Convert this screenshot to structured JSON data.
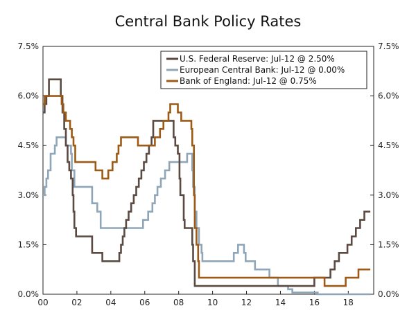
{
  "chart_data": {
    "type": "line",
    "title": "Central Bank Policy Rates",
    "xlabel": "",
    "ylabel": "",
    "xlim": [
      2000.0,
      2019.5
    ],
    "ylim": [
      0,
      7.5
    ],
    "x_ticks": [
      {
        "value": 2000,
        "label": "00"
      },
      {
        "value": 2002,
        "label": "02"
      },
      {
        "value": 2004,
        "label": "04"
      },
      {
        "value": 2006,
        "label": "06"
      },
      {
        "value": 2008,
        "label": "08"
      },
      {
        "value": 2010,
        "label": "10"
      },
      {
        "value": 2012,
        "label": "12"
      },
      {
        "value": 2014,
        "label": "14"
      },
      {
        "value": 2016,
        "label": "16"
      },
      {
        "value": 2018,
        "label": "18"
      }
    ],
    "y_ticks": [
      {
        "value": 0,
        "label": "0.0%"
      },
      {
        "value": 1.5,
        "label": "1.5%"
      },
      {
        "value": 3.0,
        "label": "3.0%"
      },
      {
        "value": 4.5,
        "label": "4.5%"
      },
      {
        "value": 6.0,
        "label": "6.0%"
      },
      {
        "value": 7.5,
        "label": "7.5%"
      }
    ],
    "grid": false,
    "legend_position": "top-right",
    "series": [
      {
        "name": "U.S. Federal Reserve: Jul-12 @ 2.50%",
        "color": "#5a4a42",
        "points": [
          [
            2000.0,
            5.5
          ],
          [
            2000.1,
            5.75
          ],
          [
            2000.2,
            6.0
          ],
          [
            2000.35,
            6.5
          ],
          [
            2000.95,
            6.5
          ],
          [
            2001.05,
            6.0
          ],
          [
            2001.15,
            5.5
          ],
          [
            2001.25,
            5.0
          ],
          [
            2001.35,
            4.5
          ],
          [
            2001.45,
            4.0
          ],
          [
            2001.55,
            3.75
          ],
          [
            2001.65,
            3.5
          ],
          [
            2001.75,
            3.0
          ],
          [
            2001.8,
            2.5
          ],
          [
            2001.85,
            2.0
          ],
          [
            2001.95,
            1.75
          ],
          [
            2002.9,
            1.25
          ],
          [
            2003.5,
            1.0
          ],
          [
            2004.5,
            1.25
          ],
          [
            2004.6,
            1.5
          ],
          [
            2004.7,
            1.75
          ],
          [
            2004.8,
            2.0
          ],
          [
            2004.9,
            2.25
          ],
          [
            2005.05,
            2.5
          ],
          [
            2005.2,
            2.75
          ],
          [
            2005.35,
            3.0
          ],
          [
            2005.5,
            3.25
          ],
          [
            2005.65,
            3.5
          ],
          [
            2005.8,
            3.75
          ],
          [
            2005.95,
            4.0
          ],
          [
            2006.1,
            4.25
          ],
          [
            2006.25,
            4.5
          ],
          [
            2006.4,
            4.75
          ],
          [
            2006.5,
            5.25
          ],
          [
            2007.65,
            5.25
          ],
          [
            2007.7,
            4.75
          ],
          [
            2007.8,
            4.5
          ],
          [
            2007.95,
            4.25
          ],
          [
            2008.05,
            3.5
          ],
          [
            2008.1,
            3.0
          ],
          [
            2008.3,
            2.25
          ],
          [
            2008.35,
            2.0
          ],
          [
            2008.8,
            1.5
          ],
          [
            2008.85,
            1.0
          ],
          [
            2008.95,
            0.25
          ],
          [
            2015.95,
            0.25
          ],
          [
            2016.0,
            0.5
          ],
          [
            2016.95,
            0.75
          ],
          [
            2017.2,
            1.0
          ],
          [
            2017.45,
            1.25
          ],
          [
            2017.95,
            1.5
          ],
          [
            2018.2,
            1.75
          ],
          [
            2018.45,
            2.0
          ],
          [
            2018.7,
            2.25
          ],
          [
            2018.95,
            2.5
          ],
          [
            2019.3,
            2.5
          ]
        ]
      },
      {
        "name": "European Central Bank: Jul-12 @ 0.00%",
        "color": "#8ea6b8",
        "points": [
          [
            2000.0,
            3.0
          ],
          [
            2000.1,
            3.25
          ],
          [
            2000.2,
            3.5
          ],
          [
            2000.3,
            3.75
          ],
          [
            2000.45,
            4.25
          ],
          [
            2000.7,
            4.5
          ],
          [
            2000.8,
            4.75
          ],
          [
            2001.35,
            4.5
          ],
          [
            2001.65,
            4.25
          ],
          [
            2001.7,
            3.75
          ],
          [
            2001.85,
            3.25
          ],
          [
            2002.9,
            2.75
          ],
          [
            2003.2,
            2.5
          ],
          [
            2003.4,
            2.0
          ],
          [
            2005.9,
            2.25
          ],
          [
            2006.2,
            2.5
          ],
          [
            2006.45,
            2.75
          ],
          [
            2006.6,
            3.0
          ],
          [
            2006.75,
            3.25
          ],
          [
            2006.95,
            3.5
          ],
          [
            2007.2,
            3.75
          ],
          [
            2007.45,
            4.0
          ],
          [
            2008.5,
            4.25
          ],
          [
            2008.8,
            3.75
          ],
          [
            2008.85,
            3.25
          ],
          [
            2008.95,
            2.5
          ],
          [
            2009.05,
            2.0
          ],
          [
            2009.2,
            1.5
          ],
          [
            2009.35,
            1.25
          ],
          [
            2009.4,
            1.0
          ],
          [
            2011.25,
            1.25
          ],
          [
            2011.5,
            1.5
          ],
          [
            2011.85,
            1.25
          ],
          [
            2011.95,
            1.0
          ],
          [
            2012.5,
            0.75
          ],
          [
            2013.35,
            0.5
          ],
          [
            2013.85,
            0.25
          ],
          [
            2014.45,
            0.15
          ],
          [
            2014.7,
            0.05
          ],
          [
            2016.2,
            0.0
          ],
          [
            2019.3,
            0.0
          ]
        ]
      },
      {
        "name": "Bank of England: Jul-12 @ 0.75%",
        "color": "#9c5a16",
        "points": [
          [
            2000.0,
            5.75
          ],
          [
            2000.1,
            6.0
          ],
          [
            2001.1,
            5.75
          ],
          [
            2001.2,
            5.5
          ],
          [
            2001.35,
            5.25
          ],
          [
            2001.6,
            5.0
          ],
          [
            2001.7,
            4.75
          ],
          [
            2001.8,
            4.5
          ],
          [
            2001.9,
            4.0
          ],
          [
            2003.1,
            3.75
          ],
          [
            2003.5,
            3.5
          ],
          [
            2003.85,
            3.75
          ],
          [
            2004.1,
            4.0
          ],
          [
            2004.35,
            4.25
          ],
          [
            2004.45,
            4.5
          ],
          [
            2004.6,
            4.75
          ],
          [
            2005.6,
            4.5
          ],
          [
            2006.6,
            4.75
          ],
          [
            2006.9,
            5.0
          ],
          [
            2007.1,
            5.25
          ],
          [
            2007.4,
            5.5
          ],
          [
            2007.5,
            5.75
          ],
          [
            2007.95,
            5.5
          ],
          [
            2008.15,
            5.25
          ],
          [
            2008.75,
            5.0
          ],
          [
            2008.8,
            4.5
          ],
          [
            2008.9,
            3.0
          ],
          [
            2008.95,
            2.0
          ],
          [
            2009.05,
            1.5
          ],
          [
            2009.15,
            1.0
          ],
          [
            2009.2,
            0.5
          ],
          [
            2016.6,
            0.25
          ],
          [
            2017.85,
            0.5
          ],
          [
            2018.6,
            0.75
          ],
          [
            2019.3,
            0.75
          ]
        ]
      }
    ]
  }
}
